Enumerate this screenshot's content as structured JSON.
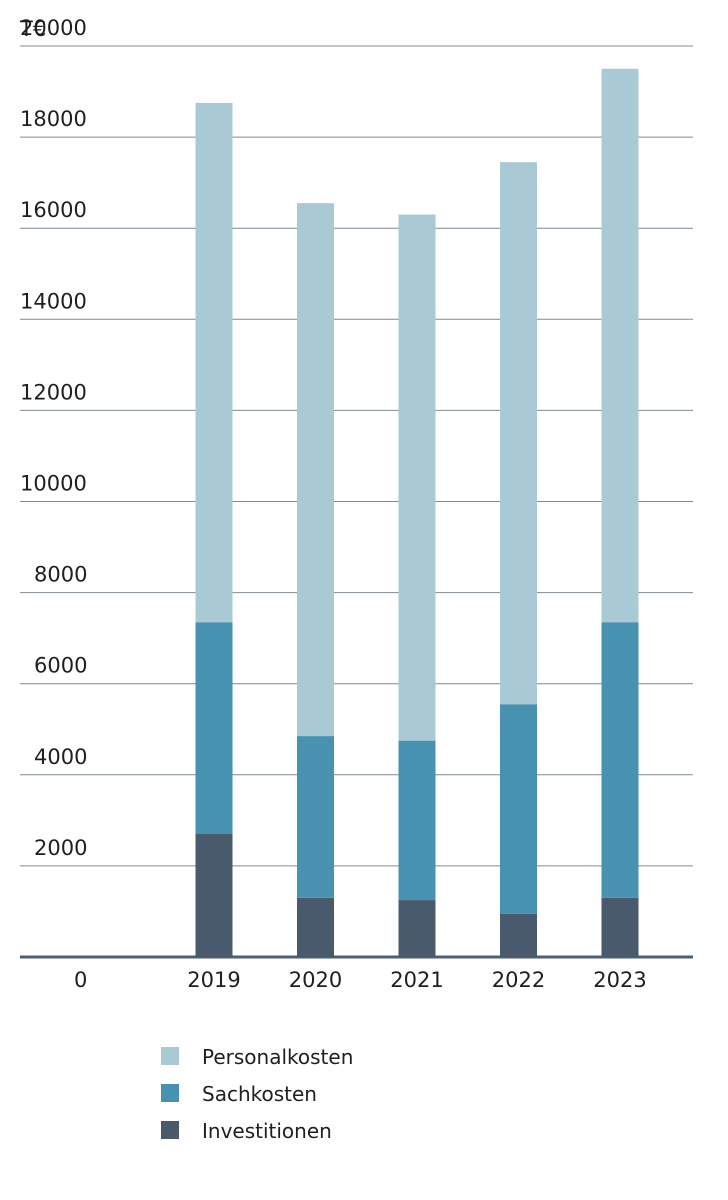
{
  "chart_data": {
    "type": "bar",
    "stacked": true,
    "unit_label": "T€",
    "ylim": [
      0,
      20000
    ],
    "yticks": [
      "0",
      "2000",
      "4000",
      "6000",
      "8000",
      "10000",
      "12000",
      "14000",
      "16000",
      "18000",
      "20000"
    ],
    "categories": [
      "2019",
      "2020",
      "2021",
      "2022",
      "2023"
    ],
    "series": [
      {
        "name": "Investitionen",
        "color": "#4a5a6d",
        "values": [
          2700,
          1300,
          1250,
          950,
          1300
        ]
      },
      {
        "name": "Sachkosten",
        "color": "#4692b0",
        "values": [
          4650,
          3550,
          3500,
          4600,
          6050
        ]
      },
      {
        "name": "Personalkosten",
        "color": "#a9c9d4",
        "values": [
          11400,
          11700,
          11550,
          11900,
          12150
        ]
      }
    ],
    "legend_order": [
      "Personalkosten",
      "Sachkosten",
      "Investitionen"
    ],
    "legend_position": "bottom",
    "grid": true
  }
}
